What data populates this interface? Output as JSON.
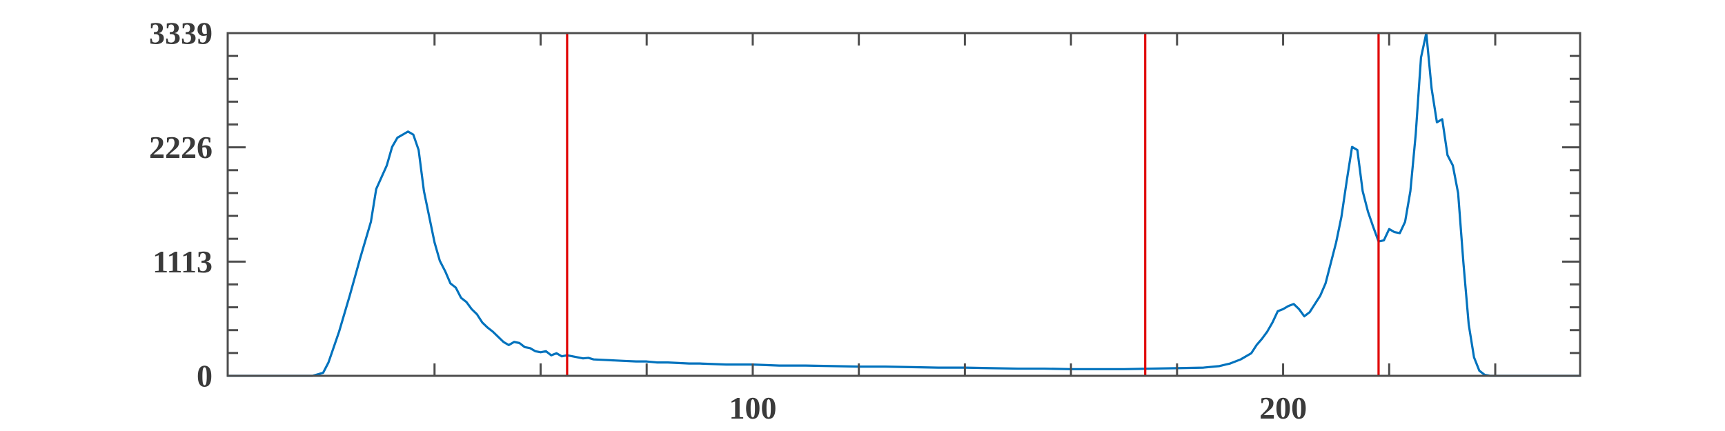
{
  "chart_data": {
    "type": "line",
    "title": "",
    "xlabel": "",
    "ylabel": "",
    "xlim": [
      1,
      256
    ],
    "ylim": [
      0,
      3339
    ],
    "x_ticks": [
      100,
      200
    ],
    "x_tick_labels": [
      "100",
      "200"
    ],
    "y_ticks": [
      0,
      1113,
      2226,
      3339
    ],
    "y_tick_labels": [
      "0",
      "1113",
      "2226",
      "3339"
    ],
    "grid": false,
    "colors": {
      "series": "#0072BD",
      "threshold": "#E00000",
      "axes": "#4d4d4d",
      "text": "#3a3a3a"
    },
    "series": [
      {
        "values_x": [
          1,
          17,
          19,
          20,
          22,
          24,
          26,
          28,
          29,
          31,
          32,
          33,
          34,
          35,
          36,
          37,
          38,
          39,
          40,
          41,
          42,
          43,
          44,
          45,
          46,
          47,
          48,
          49,
          50,
          51,
          52,
          53,
          54,
          55,
          56,
          57,
          58,
          59,
          60,
          61,
          62,
          63,
          64,
          65,
          66,
          67,
          68,
          69,
          70,
          72,
          74,
          76,
          78,
          80,
          82,
          84,
          86,
          88,
          90,
          95,
          100,
          105,
          110,
          115,
          120,
          125,
          130,
          135,
          140,
          145,
          150,
          155,
          160,
          165,
          170,
          175,
          180,
          185,
          188,
          190,
          192,
          194,
          195,
          196,
          197,
          198,
          199,
          200,
          201,
          202,
          203,
          204,
          205,
          206,
          207,
          208,
          209,
          210,
          211,
          212,
          213,
          214,
          215,
          216,
          217,
          218,
          219,
          220,
          221,
          222,
          223,
          224,
          225,
          226,
          227,
          228,
          229,
          230,
          231,
          232,
          233,
          234,
          235,
          236,
          237,
          238,
          239,
          240,
          241,
          242,
          244,
          246,
          256
        ],
        "values_y": [
          0,
          0,
          30,
          130,
          430,
          780,
          1150,
          1500,
          1820,
          2050,
          2230,
          2320,
          2350,
          2380,
          2350,
          2200,
          1800,
          1550,
          1300,
          1120,
          1020,
          900,
          860,
          760,
          720,
          650,
          600,
          520,
          470,
          430,
          380,
          330,
          300,
          330,
          320,
          280,
          270,
          240,
          230,
          240,
          200,
          220,
          190,
          200,
          190,
          180,
          170,
          175,
          160,
          155,
          150,
          145,
          140,
          140,
          130,
          130,
          125,
          120,
          120,
          110,
          110,
          100,
          100,
          95,
          90,
          90,
          85,
          80,
          80,
          75,
          70,
          70,
          65,
          65,
          65,
          70,
          75,
          80,
          95,
          120,
          160,
          220,
          300,
          360,
          430,
          520,
          630,
          650,
          680,
          700,
          650,
          580,
          620,
          700,
          780,
          900,
          1100,
          1300,
          1550,
          1900,
          2230,
          2200,
          1800,
          1600,
          1450,
          1310,
          1320,
          1430,
          1400,
          1390,
          1500,
          1800,
          2350,
          3100,
          3339,
          2800,
          2470,
          2500,
          2150,
          2050,
          1780,
          1100,
          500,
          180,
          50,
          10,
          0,
          0,
          0,
          0,
          0,
          0,
          0
        ]
      }
    ],
    "vlines": [
      65,
      174,
      218
    ]
  }
}
